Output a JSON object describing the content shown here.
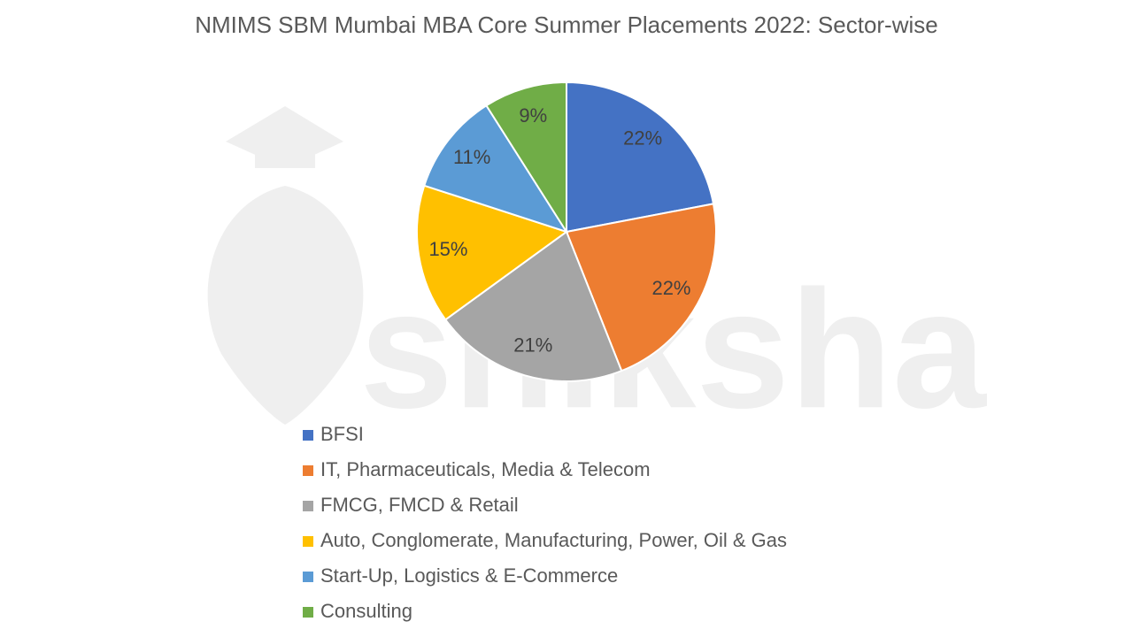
{
  "chart_data": {
    "type": "pie",
    "title": "NMIMS SBM Mumbai MBA Core Summer Placements 2022: Sector-wise",
    "watermark": "shiksha",
    "categories": [
      "BFSI",
      "IT, Pharmaceuticals, Media & Telecom",
      "FMCG, FMCD & Retail",
      "Auto, Conglomerate, Manufacturing, Power, Oil & Gas",
      "Start-Up, Logistics & E-Commerce",
      "Consulting"
    ],
    "values": [
      22,
      22,
      21,
      15,
      11,
      9
    ],
    "value_labels": [
      "22%",
      "22%",
      "21%",
      "15%",
      "11%",
      "9%"
    ],
    "colors": [
      "#4472c4",
      "#ed7d31",
      "#a5a5a5",
      "#ffc000",
      "#5b9bd5",
      "#70ad47"
    ],
    "legend": "bottom"
  }
}
